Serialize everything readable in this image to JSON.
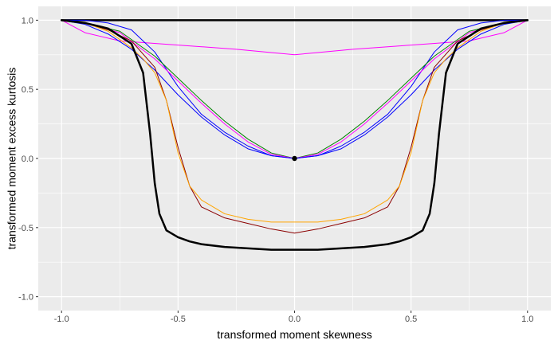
{
  "chart_data": {
    "type": "line",
    "title": "",
    "xlabel": "transformed moment skewness",
    "ylabel": "transformed moment excess kurtosis",
    "xlim": [
      -1.1,
      1.1
    ],
    "ylim": [
      -1.1,
      1.1
    ],
    "xticks": [
      -1.0,
      -0.5,
      0.0,
      0.5,
      1.0
    ],
    "yticks": [
      -1.0,
      -0.5,
      0.0,
      0.5,
      1.0
    ],
    "xtick_labels": [
      "-1.0",
      "-0.5",
      "0.0",
      "0.5",
      "1.0"
    ],
    "ytick_labels": [
      "-1.0",
      "-0.5",
      "0.0",
      "0.5",
      "1.0"
    ],
    "grid": true,
    "legend": "none",
    "colors": {
      "panel": "#ebebeb",
      "grid": "#ffffff"
    },
    "series": [
      {
        "color": "#000000",
        "width": 2.5,
        "x": [
          -1.0,
          1.0
        ],
        "y": [
          1.0,
          1.0
        ]
      },
      {
        "color": "#ff00ff",
        "width": 1,
        "x": [
          -1.0,
          -0.9,
          -0.75,
          -0.5,
          -0.25,
          0.0,
          0.25,
          0.5,
          0.75,
          0.9,
          1.0
        ],
        "y": [
          1.0,
          0.91,
          0.85,
          0.82,
          0.79,
          0.75,
          0.79,
          0.82,
          0.85,
          0.91,
          1.0
        ]
      },
      {
        "color": "#0000ff",
        "width": 1,
        "x": [
          -1.0,
          -0.9,
          -0.8,
          -0.7,
          -0.6,
          -0.5,
          -0.4,
          -0.3,
          -0.2,
          -0.1,
          0.0,
          0.1,
          0.2,
          0.3,
          0.4,
          0.5,
          0.6,
          0.7,
          0.8,
          0.9,
          1.0
        ],
        "y": [
          1.0,
          1.0,
          0.98,
          0.93,
          0.77,
          0.52,
          0.32,
          0.19,
          0.09,
          0.02,
          0.0,
          0.02,
          0.09,
          0.19,
          0.32,
          0.52,
          0.77,
          0.93,
          0.98,
          1.0,
          1.0
        ]
      },
      {
        "color": "#008000",
        "width": 1,
        "x": [
          -1.0,
          -0.9,
          -0.75,
          -0.6,
          -0.5,
          -0.4,
          -0.3,
          -0.2,
          -0.1,
          0.0,
          0.1,
          0.2,
          0.3,
          0.4,
          0.5,
          0.6,
          0.75,
          0.9,
          1.0
        ],
        "y": [
          1.0,
          0.98,
          0.92,
          0.74,
          0.58,
          0.42,
          0.27,
          0.14,
          0.04,
          0.0,
          0.04,
          0.14,
          0.27,
          0.42,
          0.58,
          0.74,
          0.92,
          0.98,
          1.0
        ]
      },
      {
        "color": "#ff00ff",
        "width": 1,
        "x": [
          -1.0,
          -0.9,
          -0.75,
          -0.6,
          -0.5,
          -0.4,
          -0.3,
          -0.2,
          -0.1,
          0.0,
          0.1,
          0.2,
          0.3,
          0.4,
          0.5,
          0.6,
          0.75,
          0.9,
          1.0
        ],
        "y": [
          1.0,
          0.98,
          0.91,
          0.72,
          0.56,
          0.4,
          0.25,
          0.12,
          0.03,
          0.0,
          0.03,
          0.12,
          0.25,
          0.4,
          0.56,
          0.72,
          0.91,
          0.98,
          1.0
        ]
      },
      {
        "color": "#0000ff",
        "width": 1,
        "x": [
          -1.0,
          -0.9,
          -0.8,
          -0.7,
          -0.6,
          -0.5,
          -0.4,
          -0.3,
          -0.2,
          -0.1,
          0.0,
          0.1,
          0.2,
          0.3,
          0.4,
          0.5,
          0.6,
          0.7,
          0.8,
          0.9,
          1.0
        ],
        "y": [
          1.0,
          0.97,
          0.9,
          0.79,
          0.64,
          0.46,
          0.3,
          0.17,
          0.07,
          0.02,
          0.0,
          0.02,
          0.07,
          0.17,
          0.3,
          0.46,
          0.64,
          0.79,
          0.9,
          0.97,
          1.0
        ]
      },
      {
        "color": "#8b0000",
        "width": 1,
        "x": [
          -1.0,
          -0.9,
          -0.8,
          -0.7,
          -0.6,
          -0.55,
          -0.5,
          -0.45,
          -0.4,
          -0.3,
          -0.2,
          -0.1,
          0.0,
          0.1,
          0.2,
          0.3,
          0.4,
          0.45,
          0.5,
          0.55,
          0.6,
          0.7,
          0.8,
          0.9,
          1.0
        ],
        "y": [
          1.0,
          0.98,
          0.93,
          0.85,
          0.66,
          0.42,
          0.08,
          -0.2,
          -0.35,
          -0.43,
          -0.47,
          -0.51,
          -0.54,
          -0.51,
          -0.47,
          -0.43,
          -0.35,
          -0.2,
          0.08,
          0.42,
          0.66,
          0.85,
          0.93,
          0.98,
          1.0
        ]
      },
      {
        "color": "#ffa500",
        "width": 1,
        "x": [
          -1.0,
          -0.9,
          -0.8,
          -0.7,
          -0.65,
          -0.6,
          -0.55,
          -0.5,
          -0.45,
          -0.4,
          -0.3,
          -0.2,
          -0.1,
          0.0,
          0.1,
          0.2,
          0.3,
          0.4,
          0.45,
          0.5,
          0.55,
          0.6,
          0.65,
          0.7,
          0.8,
          0.9,
          1.0
        ],
        "y": [
          1.0,
          0.98,
          0.92,
          0.8,
          0.72,
          0.62,
          0.42,
          0.04,
          -0.2,
          -0.3,
          -0.4,
          -0.44,
          -0.46,
          -0.46,
          -0.46,
          -0.44,
          -0.4,
          -0.3,
          -0.2,
          0.04,
          0.42,
          0.62,
          0.72,
          0.8,
          0.92,
          0.98,
          1.0
        ]
      },
      {
        "color": "#000000",
        "width": 2.5,
        "x": [
          -1.0,
          -0.9,
          -0.8,
          -0.7,
          -0.65,
          -0.62,
          -0.6,
          -0.58,
          -0.55,
          -0.5,
          -0.45,
          -0.4,
          -0.3,
          -0.2,
          -0.1,
          0.0,
          0.1,
          0.2,
          0.3,
          0.4,
          0.45,
          0.5,
          0.55,
          0.58,
          0.6,
          0.62,
          0.65,
          0.7,
          0.8,
          0.9,
          1.0
        ],
        "y": [
          1.0,
          0.98,
          0.94,
          0.83,
          0.62,
          0.18,
          -0.18,
          -0.4,
          -0.52,
          -0.57,
          -0.6,
          -0.62,
          -0.64,
          -0.65,
          -0.66,
          -0.66,
          -0.66,
          -0.65,
          -0.64,
          -0.62,
          -0.6,
          -0.57,
          -0.52,
          -0.4,
          -0.18,
          0.18,
          0.62,
          0.83,
          0.94,
          0.98,
          1.0
        ]
      }
    ],
    "points": [
      {
        "x": 0.0,
        "y": 0.0,
        "color": "#000000"
      }
    ]
  }
}
